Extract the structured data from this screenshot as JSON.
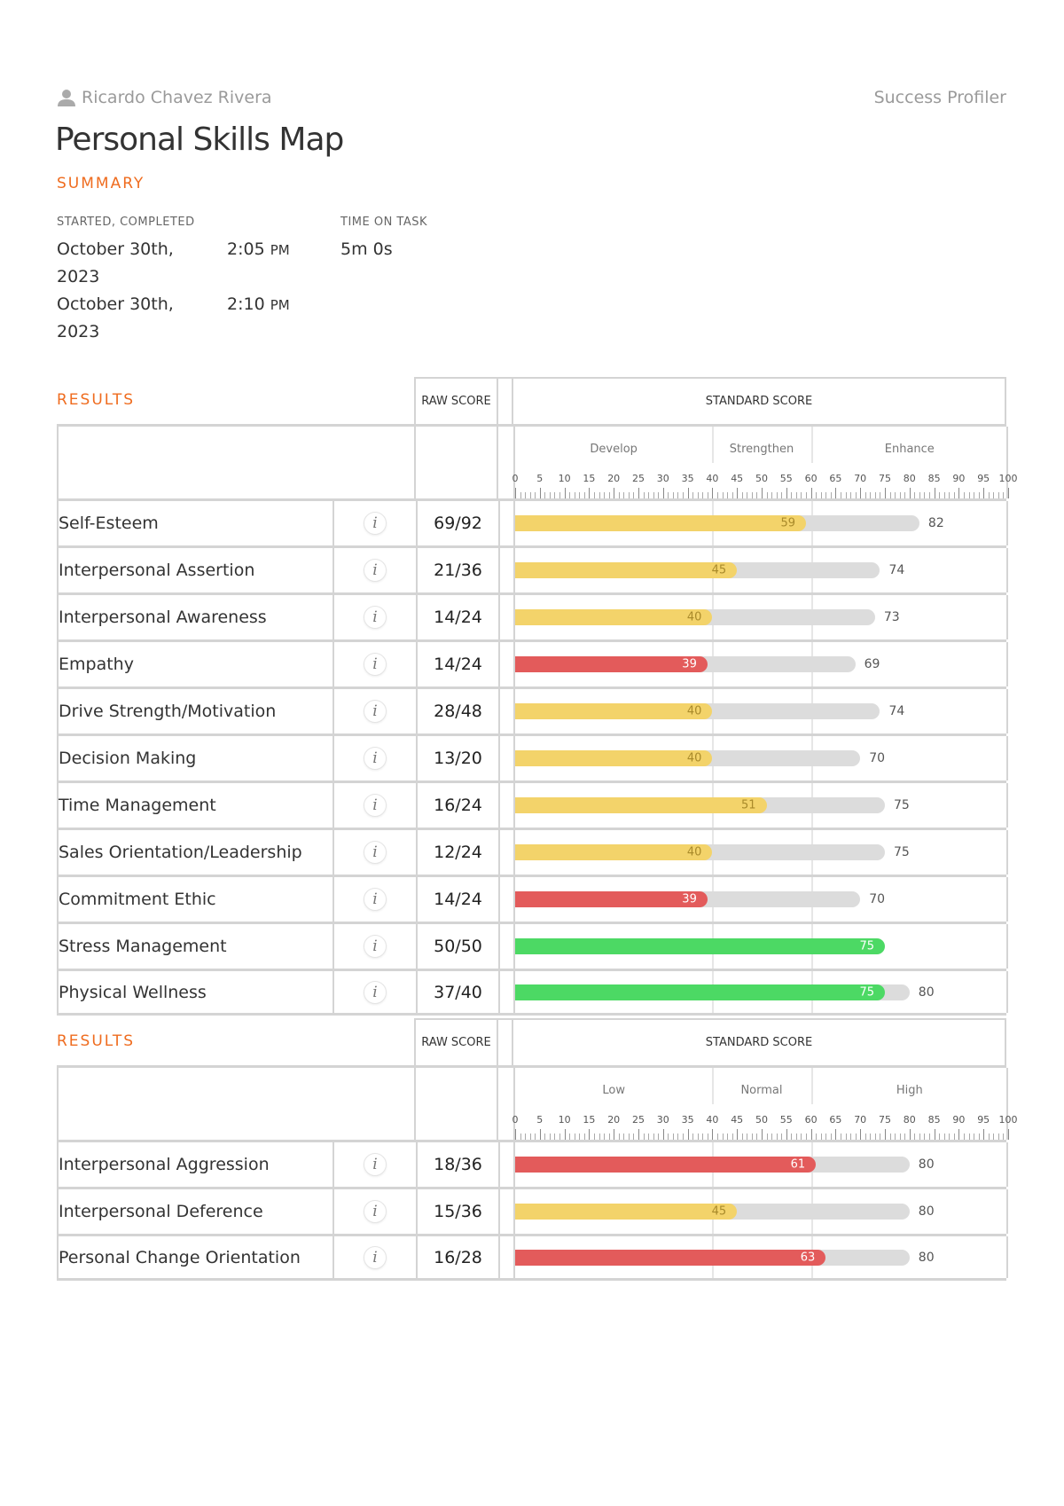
{
  "header": {
    "user_name": "Ricardo Chavez Rivera",
    "user_icon": "person-icon",
    "product": "Success Profiler",
    "title": "Personal Skills Map"
  },
  "summary": {
    "heading": "SUMMARY",
    "started_completed_label": "STARTED, COMPLETED",
    "time_on_task_label": "TIME ON TASK",
    "started_date": "October 30th, 2023",
    "started_time": "2:05",
    "started_ampm": "PM",
    "completed_date": "October 30th, 2023",
    "completed_time": "2:10",
    "completed_ampm": "PM",
    "time_on_task": "5m 0s"
  },
  "colors": {
    "accent": "#ef6c1f",
    "yellow": "#f3d36a",
    "red": "#e35b5b",
    "green": "#4cd964",
    "range": "#dcdcdc"
  },
  "ticks": [
    "0",
    "5",
    "10",
    "15",
    "20",
    "25",
    "30",
    "35",
    "40",
    "45",
    "50",
    "55",
    "60",
    "65",
    "70",
    "75",
    "80",
    "85",
    "90",
    "95",
    "100"
  ],
  "sections": [
    {
      "heading": "RESULTS",
      "raw_header": "RAW SCORE",
      "std_header": "STANDARD SCORE",
      "bands": [
        "Develop",
        "Strengthen",
        "Enhance"
      ],
      "rows": [
        {
          "name": "Self-Esteem",
          "raw": "69/92",
          "score": 59,
          "color": "yellow",
          "range_end": 82
        },
        {
          "name": "Interpersonal Assertion",
          "raw": "21/36",
          "score": 45,
          "color": "yellow",
          "range_end": 74
        },
        {
          "name": "Interpersonal Awareness",
          "raw": "14/24",
          "score": 40,
          "color": "yellow",
          "range_end": 73
        },
        {
          "name": "Empathy",
          "raw": "14/24",
          "score": 39,
          "color": "red",
          "range_end": 69
        },
        {
          "name": "Drive Strength/Motivation",
          "raw": "28/48",
          "score": 40,
          "color": "yellow",
          "range_end": 74
        },
        {
          "name": "Decision Making",
          "raw": "13/20",
          "score": 40,
          "color": "yellow",
          "range_end": 70
        },
        {
          "name": "Time Management",
          "raw": "16/24",
          "score": 51,
          "color": "yellow",
          "range_end": 75
        },
        {
          "name": "Sales Orientation/Leadership",
          "raw": "12/24",
          "score": 40,
          "color": "yellow",
          "range_end": 75
        },
        {
          "name": "Commitment Ethic",
          "raw": "14/24",
          "score": 39,
          "color": "red",
          "range_end": 70
        },
        {
          "name": "Stress Management",
          "raw": "50/50",
          "score": 75,
          "color": "green",
          "range_end": null
        },
        {
          "name": "Physical Wellness",
          "raw": "37/40",
          "score": 75,
          "color": "green",
          "range_end": 80
        }
      ]
    },
    {
      "heading": "RESULTS",
      "raw_header": "RAW SCORE",
      "std_header": "STANDARD SCORE",
      "bands": [
        "Low",
        "Normal",
        "High"
      ],
      "rows": [
        {
          "name": "Interpersonal Aggression",
          "raw": "18/36",
          "score": 61,
          "color": "red",
          "range_end": 80
        },
        {
          "name": "Interpersonal Deference",
          "raw": "15/36",
          "score": 45,
          "color": "yellow",
          "range_end": 80
        },
        {
          "name": "Personal Change Orientation",
          "raw": "16/28",
          "score": 63,
          "color": "red",
          "range_end": 80
        }
      ]
    }
  ]
}
